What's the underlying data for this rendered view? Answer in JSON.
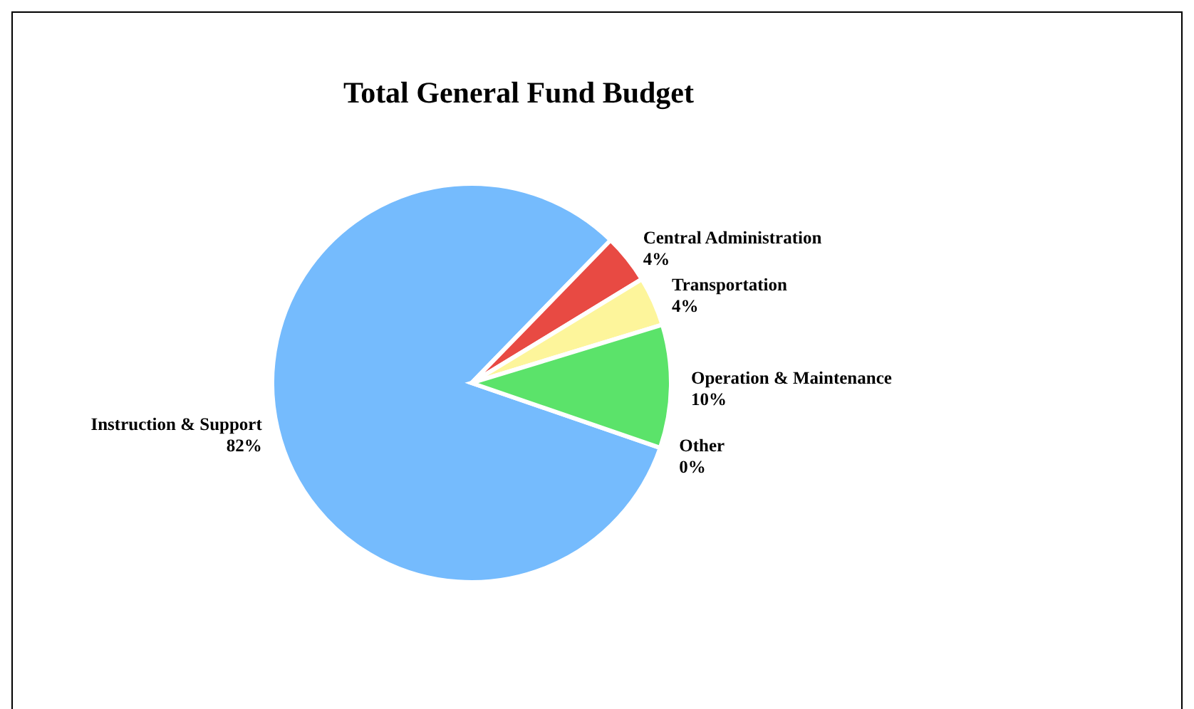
{
  "chart_data": {
    "type": "pie",
    "title": "Total General Fund Budget",
    "categories": [
      "Instruction & Support",
      "Central Administration",
      "Transportation",
      "Operation & Maintenance",
      "Other"
    ],
    "values": [
      82,
      4,
      4,
      10,
      0
    ],
    "value_labels": [
      "82%",
      "4%",
      "4%",
      "10%",
      "0%"
    ],
    "colors": [
      "#75bbfd",
      "#e84a43",
      "#fdf59b",
      "#5be36a",
      "#8a3ffc"
    ],
    "legend": false
  }
}
